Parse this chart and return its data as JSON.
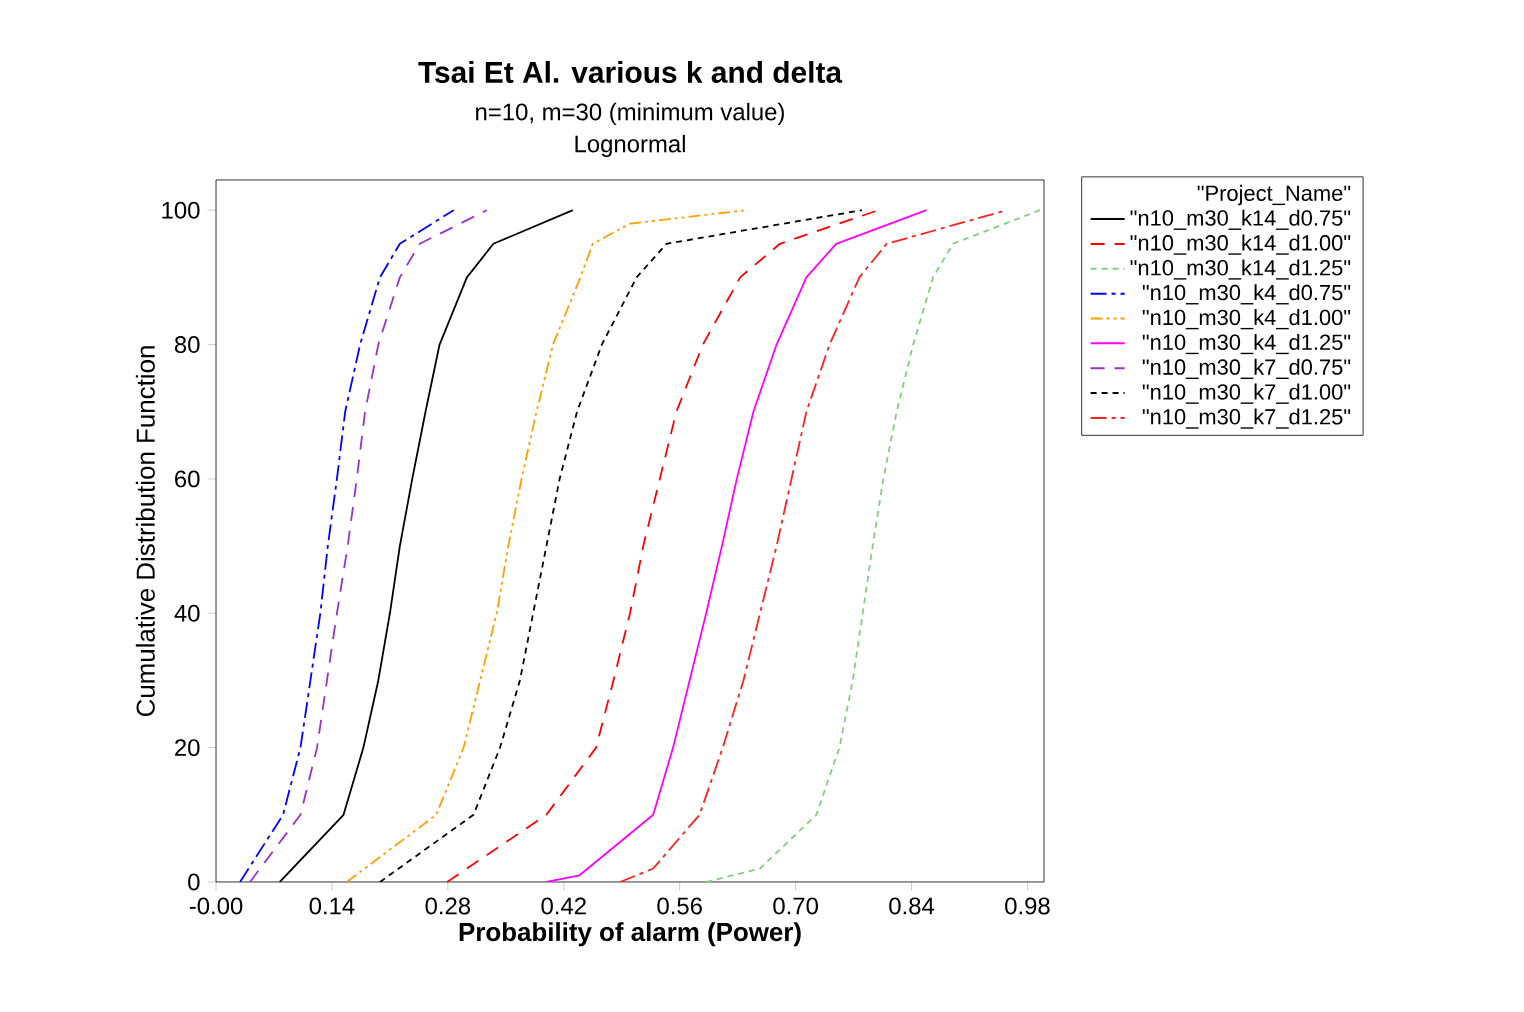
{
  "chart_data": {
    "type": "line",
    "title": "Tsai Et Al. various k and delta",
    "subtitle": "n=10, m=30 (minimum value)",
    "annotations": [
      "Lognormal"
    ],
    "xlabel": "Probability of alarm (Power)",
    "ylabel": "Cumulative Distribution Function",
    "legend_title": "\"Project_Name\"",
    "legend": "right",
    "xlim": [
      0,
      1
    ],
    "ylim": [
      0,
      104.5
    ],
    "xticks": [
      {
        "value": 0,
        "label": "-0.00"
      },
      {
        "value": 0.14,
        "label": "0.14"
      },
      {
        "value": 0.28,
        "label": "0.28"
      },
      {
        "value": 0.42,
        "label": "0.42"
      },
      {
        "value": 0.56,
        "label": "0.56"
      },
      {
        "value": 0.7,
        "label": "0.70"
      },
      {
        "value": 0.84,
        "label": "0.84"
      },
      {
        "value": 0.98,
        "label": "0.98"
      }
    ],
    "yticks": [
      0,
      20,
      40,
      60,
      80,
      100
    ],
    "series": [
      {
        "name": "\"n10_m30_k14_d0.75\"",
        "color": "#000000",
        "line_style": "solid",
        "x": [
          0.077,
          0.154,
          0.178,
          0.196,
          0.21,
          0.222,
          0.237,
          0.253,
          0.27,
          0.303,
          0.335,
          0.431
        ],
        "values": [
          0,
          10,
          20,
          30,
          40,
          50,
          60,
          70,
          80,
          90,
          95,
          100
        ]
      },
      {
        "name": "\"n10_m30_k14_d1.00\"",
        "color": "#ff0000",
        "line_style": "longdash",
        "x": [
          0.279,
          0.399,
          0.459,
          0.48,
          0.5,
          0.516,
          0.536,
          0.556,
          0.588,
          0.633,
          0.681,
          0.8
        ],
        "values": [
          0,
          10,
          20,
          30,
          40,
          50,
          60,
          70,
          80,
          90,
          95,
          100
        ]
      },
      {
        "name": "\"n10_m30_k14_d1.25\"",
        "color": "#80d080",
        "line_style": "dashed",
        "x": [
          0.592,
          0.657,
          0.725,
          0.753,
          0.769,
          0.781,
          0.793,
          0.806,
          0.822,
          0.842,
          0.866,
          0.89,
          0.995
        ],
        "values": [
          0,
          2,
          10,
          20,
          30,
          40,
          50,
          60,
          70,
          80,
          90,
          95,
          100
        ]
      },
      {
        "name": "\"n10_m30_k4_d0.75\"",
        "color": "#0000ff",
        "line_style": "dashdot",
        "x": [
          0.029,
          0.081,
          0.102,
          0.114,
          0.126,
          0.135,
          0.146,
          0.156,
          0.174,
          0.198,
          0.222,
          0.287
        ],
        "values": [
          0,
          10,
          20,
          30,
          40,
          50,
          60,
          70,
          80,
          90,
          95,
          100
        ]
      },
      {
        "name": "\"n10_m30_k4_d1.00\"",
        "color": "#ffa000",
        "line_style": "dashdotdot",
        "x": [
          0.158,
          0.266,
          0.299,
          0.319,
          0.339,
          0.353,
          0.369,
          0.387,
          0.407,
          0.44,
          0.455,
          0.5,
          0.64
        ],
        "values": [
          0,
          10,
          20,
          30,
          40,
          50,
          60,
          70,
          80,
          90,
          95,
          98,
          100
        ]
      },
      {
        "name": "\"n10_m30_k4_d1.25\"",
        "color": "#ff00ff",
        "line_style": "solid",
        "x": [
          0.399,
          0.439,
          0.528,
          0.552,
          0.572,
          0.592,
          0.611,
          0.629,
          0.649,
          0.677,
          0.713,
          0.749,
          0.858
        ],
        "values": [
          0,
          1,
          10,
          20,
          30,
          40,
          50,
          60,
          70,
          80,
          90,
          95,
          100
        ]
      },
      {
        "name": "\"n10_m30_k7_d0.75\"",
        "color": "#9933cc",
        "line_style": "longdash",
        "x": [
          0.041,
          0.102,
          0.122,
          0.134,
          0.146,
          0.159,
          0.17,
          0.18,
          0.196,
          0.222,
          0.246,
          0.327
        ],
        "values": [
          0,
          10,
          20,
          30,
          40,
          50,
          60,
          70,
          80,
          90,
          95,
          100
        ]
      },
      {
        "name": "\"n10_m30_k7_d1.00\"",
        "color": "#000000",
        "line_style": "dashed",
        "x": [
          0.198,
          0.311,
          0.343,
          0.367,
          0.383,
          0.399,
          0.415,
          0.436,
          0.466,
          0.508,
          0.544,
          0.78
        ],
        "values": [
          0,
          10,
          20,
          30,
          40,
          50,
          60,
          70,
          80,
          90,
          95,
          100
        ]
      },
      {
        "name": "\"n10_m30_k7_d1.25\"",
        "color": "#ff2020",
        "line_style": "dashdot",
        "x": [
          0.488,
          0.528,
          0.584,
          0.612,
          0.637,
          0.657,
          0.677,
          0.695,
          0.713,
          0.741,
          0.777,
          0.81,
          0.955
        ],
        "values": [
          0,
          2,
          10,
          20,
          30,
          40,
          50,
          60,
          70,
          80,
          90,
          95,
          100
        ]
      }
    ]
  }
}
